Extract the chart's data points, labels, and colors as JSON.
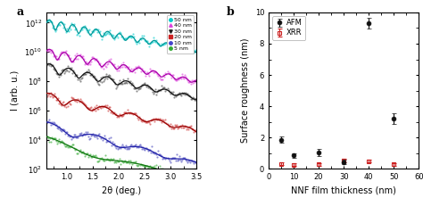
{
  "panel_a": {
    "xlabel": "2θ (deg.)",
    "ylabel": "I (arb. u.)",
    "xlim": [
      0.62,
      3.5
    ],
    "ylim": [
      100.0,
      5000000000000.0
    ],
    "label": "a",
    "legend_labels": [
      "50 nm",
      "40 nm",
      "30 nm",
      "20 nm",
      "10 nm",
      "5 nm"
    ],
    "legend_colors": [
      "#00cccc",
      "#dd44dd",
      "#222222",
      "#cc2222",
      "#4444cc",
      "#33aa33"
    ],
    "legend_markers": [
      "o",
      "^",
      "v",
      "s",
      "o",
      "o"
    ],
    "curves": [
      {
        "color_sc": "#00cccc",
        "color_fit": "#009999",
        "freq": 28,
        "decay": 1.5,
        "amp": 1000000000000.0,
        "phase": 0.0,
        "noise_seed": 0
      },
      {
        "color_sc": "#dd44dd",
        "color_fit": "#aa00aa",
        "freq": 22,
        "decay": 1.6,
        "amp": 10000000000.0,
        "phase": 0.2,
        "noise_seed": 1
      },
      {
        "color_sc": "#444444",
        "color_fit": "#111111",
        "freq": 17,
        "decay": 1.7,
        "amp": 1000000000.0,
        "phase": 0.5,
        "noise_seed": 2
      },
      {
        "color_sc": "#cc3333",
        "color_fit": "#990000",
        "freq": 12,
        "decay": 1.9,
        "amp": 10000000.0,
        "phase": 0.8,
        "noise_seed": 3
      },
      {
        "color_sc": "#4444bb",
        "color_fit": "#2222aa",
        "freq": 7,
        "decay": 2.1,
        "amp": 100000.0,
        "phase": 1.2,
        "noise_seed": 4
      },
      {
        "color_sc": "#33aa33",
        "color_fit": "#117711",
        "freq": 3,
        "decay": 2.3,
        "amp": 10000.0,
        "phase": 1.8,
        "noise_seed": 5
      }
    ]
  },
  "panel_b": {
    "xlabel": "NNF film thickness (nm)",
    "ylabel": "Surface roughness (nm)",
    "xlim": [
      0,
      60
    ],
    "ylim": [
      0,
      10
    ],
    "label": "b",
    "yticks": [
      0,
      2,
      4,
      6,
      8,
      10
    ],
    "xticks": [
      0,
      10,
      20,
      30,
      40,
      50,
      60
    ],
    "afm_x": [
      5,
      10,
      20,
      30,
      40,
      50
    ],
    "afm_y": [
      1.85,
      0.85,
      1.05,
      0.45,
      9.3,
      3.2
    ],
    "afm_yerr": [
      0.2,
      0.15,
      0.25,
      0.12,
      0.35,
      0.35
    ],
    "xrr_x": [
      5,
      10,
      20,
      30,
      40,
      50
    ],
    "xrr_y": [
      0.32,
      0.28,
      0.3,
      0.55,
      0.5,
      0.3
    ],
    "xrr_yerr": [
      0.09,
      0.1,
      0.08,
      0.12,
      0.1,
      0.08
    ],
    "afm_color": "#111111",
    "xrr_color": "#cc2222"
  }
}
